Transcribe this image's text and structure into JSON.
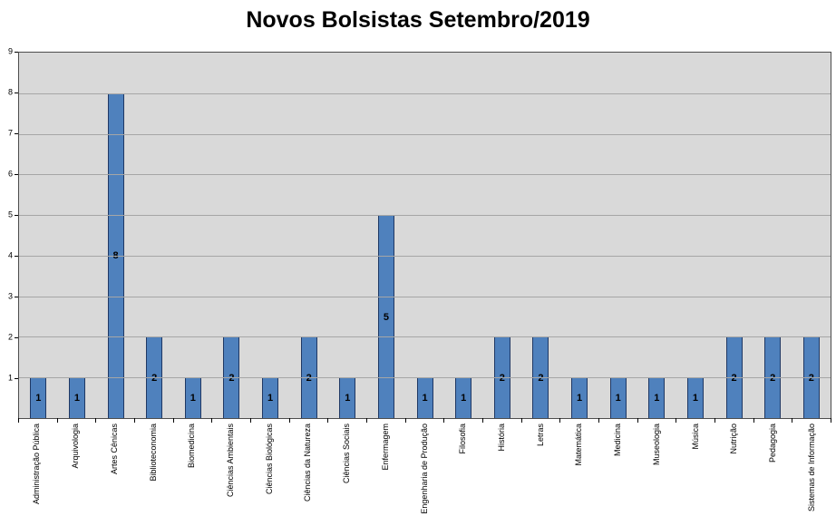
{
  "chart_data": {
    "type": "bar",
    "title": "Novos Bolsistas Setembro/2019",
    "categories": [
      "Administração Pública",
      "Arquivologia",
      "Artes Cênicas",
      "Biblioteconomia",
      "Biomedicina",
      "Ciências Ambientais",
      "Ciências Biológicas",
      "Ciências da Natureza",
      "Ciências Sociais",
      "Enfermagem",
      "Engenharia de Produção",
      "Filosofia",
      "História",
      "Letras",
      "Matemática",
      "Medicina",
      "Museologia",
      "Música",
      "Nutrição",
      "Pedagogia",
      "Sistemas de Informação"
    ],
    "values": [
      1,
      1,
      8,
      2,
      1,
      2,
      1,
      2,
      1,
      5,
      1,
      1,
      2,
      2,
      1,
      1,
      1,
      1,
      2,
      2,
      2
    ],
    "xlabel": "",
    "ylabel": "",
    "ylim": [
      0,
      9
    ],
    "ytick_step": 1,
    "grid": true,
    "legend": "none",
    "data_labels": "center",
    "colors": {
      "bar_fill": "#4F81BD",
      "bar_border": "#1F3864",
      "plot_background": "#D9D9D9",
      "gridline": "#A6A6A6",
      "axis": "#000000",
      "title_text": "#000000"
    }
  }
}
